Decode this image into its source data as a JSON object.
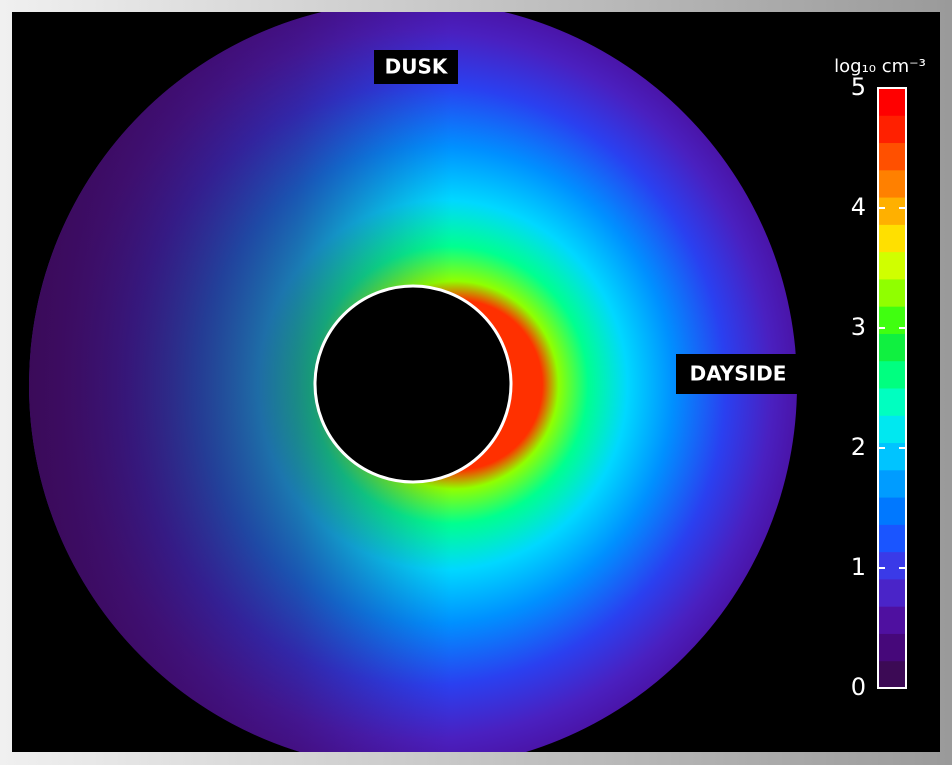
{
  "chart_data": {
    "type": "colorbar",
    "annotations": [
      "DUSK",
      "DAYSIDE"
    ],
    "colorbar_label": "log₁₀ cm⁻³",
    "clim": [
      0,
      5
    ],
    "cticks": [
      0,
      1,
      2,
      3,
      4,
      5
    ],
    "colormap": [
      "#3c0a55",
      "#46087a",
      "#4f10a0",
      "#4a24c8",
      "#3a3ae8",
      "#1a55ff",
      "#0078ff",
      "#009cff",
      "#00c4ff",
      "#00e8f0",
      "#00ffc0",
      "#00ff80",
      "#10f040",
      "#40ff10",
      "#90ff00",
      "#d0ff00",
      "#ffe000",
      "#ffb000",
      "#ff8000",
      "#ff5000",
      "#ff2000",
      "#ff0000"
    ]
  }
}
